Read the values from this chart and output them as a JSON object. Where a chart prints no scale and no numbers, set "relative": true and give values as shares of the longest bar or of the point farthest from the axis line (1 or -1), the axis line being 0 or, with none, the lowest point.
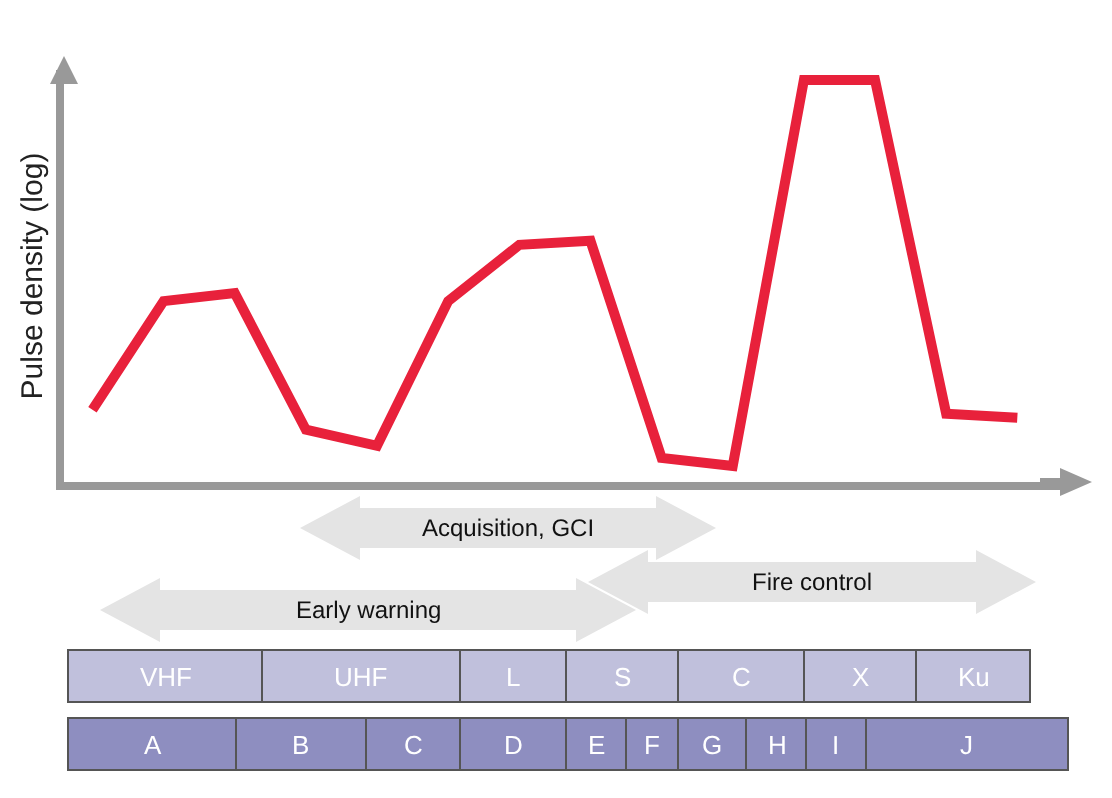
{
  "chart_data": {
    "type": "line",
    "relative": true,
    "ylabel": "Pulse density (log)",
    "categories": [
      null,
      null,
      null,
      null,
      null,
      null,
      null,
      null,
      null,
      null,
      null,
      null,
      null,
      null
    ],
    "series": [
      {
        "color": "#e8213b",
        "values": [
          0.18,
          0.45,
          0.47,
          0.13,
          0.09,
          0.45,
          0.59,
          0.6,
          0.06,
          0.04,
          1,
          1,
          0.17,
          0.16
        ]
      }
    ],
    "marker": "none",
    "line_style": "solid",
    "legend": false,
    "annotations": [
      "Acquisition, GCI",
      "Fire control",
      "Early warning",
      "VHF",
      "UHF",
      "L",
      "S",
      "C",
      "X",
      "Ku",
      "A",
      "B",
      "C",
      "D",
      "E",
      "F",
      "G",
      "H",
      "I",
      "J"
    ]
  }
}
